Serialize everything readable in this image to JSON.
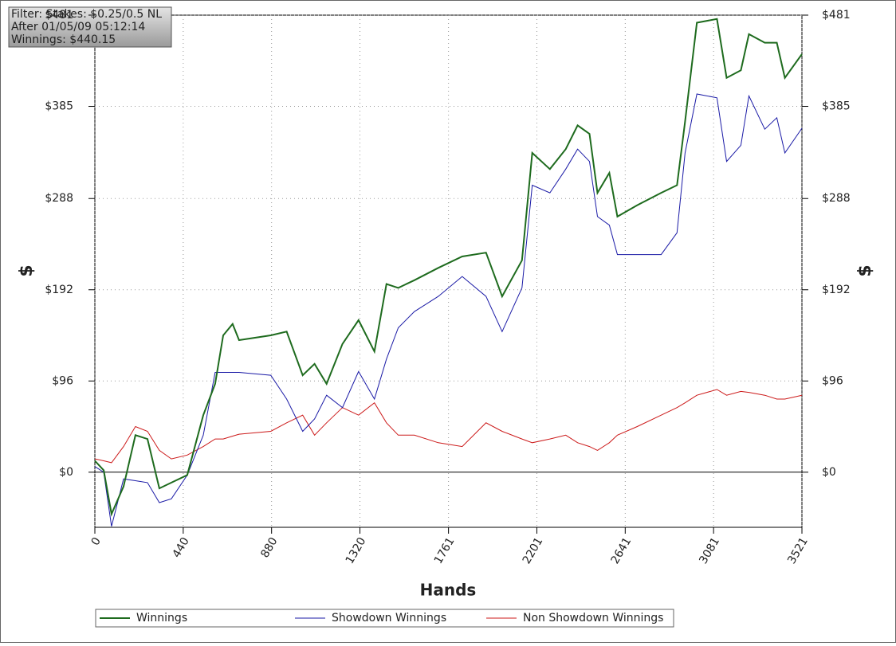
{
  "chart_data": {
    "type": "line",
    "info": [
      "Filter: Stakes: $0.25/0.5 NL",
      "After 01/05/09 05:12:14",
      "Winnings: $440.15"
    ],
    "xlabel": "Hands",
    "ylabel": "$",
    "x": [
      0,
      44,
      83,
      143,
      202,
      262,
      321,
      381,
      460,
      540,
      599,
      639,
      686,
      718,
      876,
      955,
      1035,
      1094,
      1154,
      1233,
      1313,
      1392,
      1452,
      1511,
      1591,
      1710,
      1829,
      1948,
      2028,
      2127,
      2178,
      2266,
      2345,
      2404,
      2463,
      2503,
      2562,
      2602,
      2701,
      2820,
      2899,
      2939,
      2998,
      3098,
      3146,
      3217,
      3257,
      3336,
      3396,
      3436,
      3521
    ],
    "series": [
      {
        "name": "Winnings",
        "color": "#1e6b1e",
        "values": [
          12,
          2,
          -44,
          -15,
          39,
          35,
          -17,
          -11,
          -3,
          60,
          93,
          144,
          156,
          139,
          144,
          148,
          102,
          114,
          93,
          135,
          160,
          127,
          198,
          194,
          202,
          215,
          227,
          231,
          185,
          223,
          336,
          319,
          340,
          365,
          356,
          294,
          315,
          269,
          281,
          294,
          302,
          369,
          473,
          477,
          415,
          423,
          461,
          452,
          452,
          415,
          440
        ]
      },
      {
        "name": "Showdown Winnings",
        "color": "#1a1aa6",
        "values": [
          6,
          0,
          -57,
          -7,
          -9,
          -11,
          -32,
          -28,
          -3,
          39,
          105,
          105,
          105,
          105,
          102,
          77,
          43,
          56,
          81,
          68,
          106,
          77,
          119,
          152,
          169,
          185,
          206,
          185,
          148,
          194,
          302,
          294,
          319,
          340,
          327,
          269,
          260,
          229,
          229,
          229,
          252,
          336,
          398,
          394,
          327,
          344,
          396,
          361,
          373,
          336,
          362
        ]
      },
      {
        "name": "Non Showdown Winnings",
        "color": "#cc1a1a",
        "values": [
          14,
          12,
          10,
          27,
          48,
          43,
          23,
          14,
          18,
          27,
          35,
          35,
          38,
          40,
          43,
          52,
          60,
          39,
          52,
          68,
          60,
          73,
          52,
          39,
          39,
          31,
          27,
          52,
          43,
          35,
          31,
          35,
          39,
          31,
          27,
          23,
          31,
          39,
          48,
          60,
          68,
          73,
          81,
          87,
          81,
          85,
          84,
          81,
          77,
          77,
          81
        ]
      }
    ],
    "xlim": [
      0,
      3521
    ],
    "xticks": [
      0,
      440,
      880,
      1320,
      1761,
      2201,
      2641,
      3081,
      3521
    ],
    "ylim": [
      -58,
      481
    ],
    "yticks": [
      {
        "value": 0,
        "label": "$0"
      },
      {
        "value": 96,
        "label": "$96"
      },
      {
        "value": 192,
        "label": "$192"
      },
      {
        "value": 288,
        "label": "$288"
      },
      {
        "value": 385,
        "label": "$385"
      },
      {
        "value": 481,
        "label": "$481"
      }
    ],
    "grid": true
  }
}
